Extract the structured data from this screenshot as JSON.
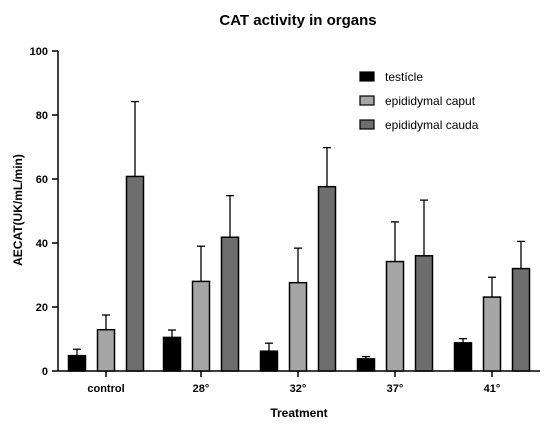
{
  "chart_data": {
    "type": "bar",
    "title": "CAT activity in organs",
    "xlabel": "Treatment",
    "ylabel": "AECAT(UK/mL/min)",
    "ylim": [
      0,
      100
    ],
    "yticks": [
      0,
      20,
      40,
      60,
      80,
      100
    ],
    "grid": false,
    "legend_position": "top-right",
    "categories": [
      "control",
      "28°",
      "32°",
      "37°",
      "41°"
    ],
    "series": [
      {
        "name": "testícle",
        "color": "#000000",
        "values": [
          4.8,
          10.5,
          6.2,
          3.8,
          8.8
        ],
        "errors": [
          2.0,
          2.3,
          2.5,
          0.7,
          1.3
        ]
      },
      {
        "name": "epididymal caput",
        "color": "#a6a6a6",
        "values": [
          12.9,
          28.0,
          27.6,
          34.2,
          23.1
        ],
        "errors": [
          4.6,
          11.0,
          10.8,
          12.4,
          6.2
        ]
      },
      {
        "name": "epididymal cauda",
        "color": "#6e6e6e",
        "values": [
          60.8,
          41.8,
          57.6,
          36.0,
          32.0
        ],
        "errors": [
          23.4,
          13.0,
          12.2,
          17.4,
          8.5
        ]
      }
    ]
  }
}
